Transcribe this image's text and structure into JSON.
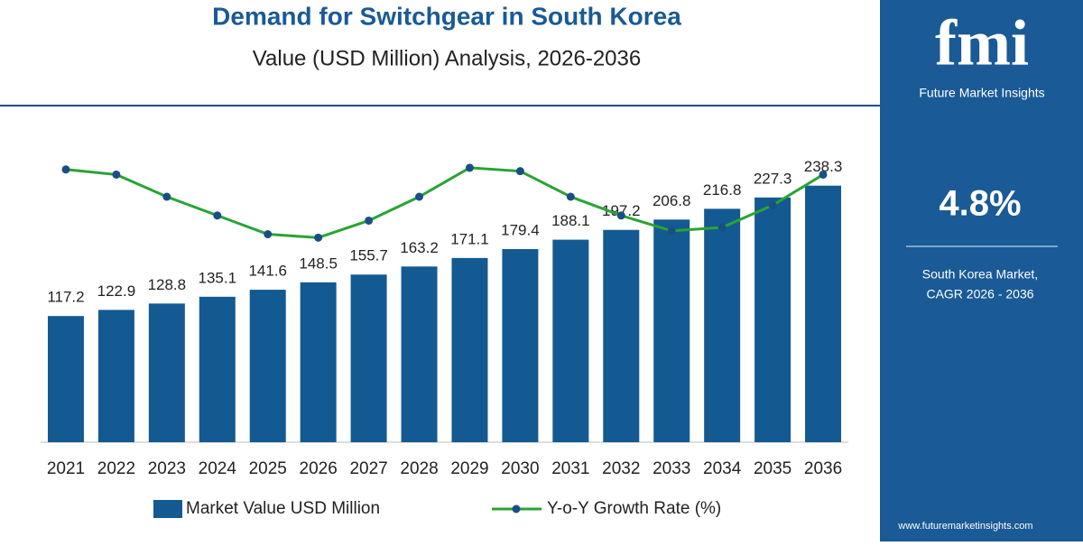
{
  "chart_data": {
    "type": "bar-line",
    "title": "Demand for Switchgear in South Korea",
    "subtitle": "Value (USD Million) Analysis, 2026-2036",
    "categories": [
      "2021",
      "2022",
      "2023",
      "2024",
      "2025",
      "2026",
      "2027",
      "2028",
      "2029",
      "2030",
      "2031",
      "2032",
      "2033",
      "2034",
      "2035",
      "2036"
    ],
    "series": [
      {
        "name": "Market Value USD Million",
        "type": "bar",
        "color": "#135a92",
        "values": [
          117.2,
          122.9,
          128.8,
          135.1,
          141.6,
          148.5,
          155.7,
          163.2,
          171.1,
          179.4,
          188.1,
          197.2,
          206.8,
          216.8,
          227.3,
          238.3
        ]
      },
      {
        "name": "Y-o-Y Growth Rate (%)",
        "type": "line",
        "axis": "y2",
        "color": "#2aa335",
        "marker_color": "#1a4f85",
        "values": [
          5.0,
          4.97,
          4.84,
          4.73,
          4.62,
          4.6,
          4.7,
          4.84,
          5.01,
          4.99,
          4.84,
          4.73,
          4.64,
          4.66,
          4.79,
          4.97
        ]
      }
    ],
    "ylim": [
      0,
      285
    ],
    "y2lim": [
      3.4,
      5.2
    ]
  },
  "sidebar": {
    "logo": "fmi",
    "brand": "Future Market Insights",
    "cagr": "4.8%",
    "caption_line1": "South Korea Market,",
    "caption_line2": "CAGR 2026 - 2036",
    "url": "www.futuremarketinsights.com"
  }
}
